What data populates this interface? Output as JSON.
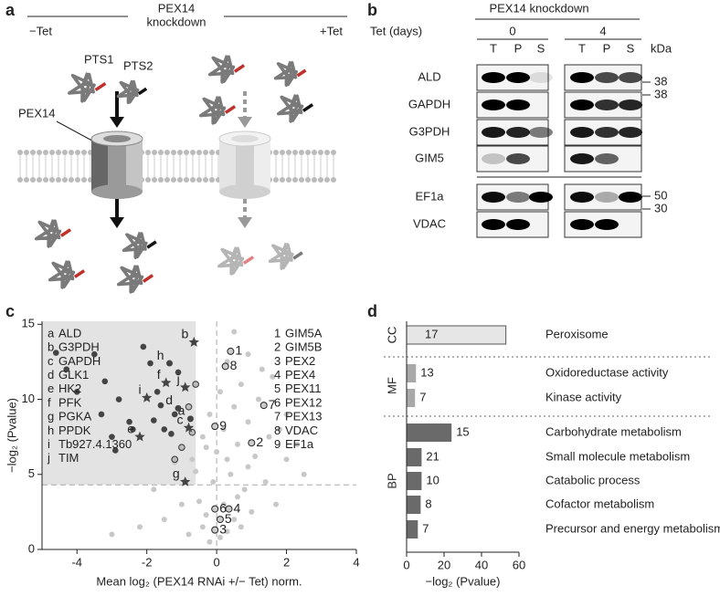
{
  "panel_labels": [
    "a",
    "b",
    "c",
    "d"
  ],
  "panel_a": {
    "header": [
      "PEX14",
      "knockdown"
    ],
    "minus_tet": "−Tet",
    "plus_tet": "+Tet",
    "pts1": "PTS1",
    "pts2": "PTS2",
    "pex14": "PEX14"
  },
  "panel_b": {
    "header": "PEX14 knockdown",
    "tet_label": "Tet (days)",
    "days": [
      "0",
      "4"
    ],
    "lanes": [
      "T",
      "P",
      "S"
    ],
    "unit": "kDa",
    "rows": [
      "ALD",
      "GAPDH",
      "G3PDH",
      "GIM5",
      "EF1a",
      "VDAC"
    ],
    "markers": [
      "38",
      "38",
      "50",
      "30"
    ]
  },
  "chart_data": [
    {
      "type": "scatter",
      "xlabel": "Mean log₂ (PEX14 RNAi +/− Tet) norm.",
      "ylabel": "−log₂ (Pvalue)",
      "xlim": [
        -5,
        4
      ],
      "ylim": [
        0,
        15.2
      ],
      "xticks": [
        -4,
        -2,
        0,
        2,
        4
      ],
      "yticks": [
        0,
        5,
        10,
        15
      ],
      "cutoff_x": 0,
      "cutoff_y": 4.3,
      "shade_xmax": -0.6,
      "background": {
        "color": "#c8c8c8",
        "x": [
          -0.2,
          0.1,
          0.3,
          -0.4,
          0.5,
          -0.3,
          0.2,
          0.6,
          -0.5,
          0.8,
          -0.1,
          0.4,
          0.9,
          -0.6,
          0.3,
          1.1,
          0.6,
          -0.3,
          1.5,
          0.2,
          0.9,
          1.8,
          -0.2,
          0.5,
          1.2,
          0.7,
          1.6,
          0.3,
          0.9,
          0.5,
          2.0,
          2.3,
          1.4,
          -1.0,
          -1.5,
          -2.2,
          -3.0,
          -1.8,
          1.0,
          1.7,
          2.5,
          -0.8,
          0.0,
          -0.4,
          0.1,
          1.3,
          2.0,
          -1.2,
          0.7,
          -0.7
        ],
        "y": [
          0.5,
          0.8,
          1.2,
          1.5,
          2,
          2.3,
          3,
          3.5,
          3.2,
          4,
          4.5,
          5,
          5.5,
          5.2,
          6,
          6.2,
          7,
          6.8,
          7.5,
          8,
          8.5,
          8,
          9,
          9.5,
          10,
          11,
          11.5,
          12.5,
          13,
          14.5,
          6,
          7,
          4.5,
          3,
          2,
          1.5,
          1,
          4,
          2.5,
          3,
          5,
          1,
          6.5,
          7.5,
          10.5,
          12,
          9,
          5.8,
          1.5,
          6
        ]
      },
      "dark": {
        "color": "#444444",
        "x": [
          -4.3,
          -3.5,
          -4.0,
          -3.2,
          -2.8,
          -3.3,
          -2.5,
          -3.0,
          -2.4,
          -1.8,
          -1.6,
          -1.2,
          -1.5,
          -1.9,
          -2.1,
          -1.1,
          -1.3,
          -4.6,
          -2.9,
          -1.7
        ],
        "y": [
          12,
          13,
          10.5,
          11.2,
          10,
          9,
          8.5,
          7.5,
          8,
          8.6,
          9.6,
          9,
          8,
          12.4,
          13.5,
          11.8,
          7.7,
          13.1,
          6.6,
          10.5
        ]
      },
      "outlined": {
        "x": [
          -0.8,
          -0.7,
          -1.0,
          -0.6,
          -1.2
        ],
        "y": [
          9.5,
          7.8,
          6.8,
          11,
          6
        ]
      },
      "highlighted": [
        {
          "key": "a",
          "name": "ALD",
          "x": -0.75,
          "y": 8.7,
          "marker": "circle",
          "group": "letter"
        },
        {
          "key": "b",
          "name": "G3PDH",
          "x": -0.65,
          "y": 13.8,
          "marker": "star",
          "group": "letter"
        },
        {
          "key": "c",
          "name": "GAPDH",
          "x": -0.8,
          "y": 8.1,
          "marker": "star",
          "group": "letter"
        },
        {
          "key": "d",
          "name": "GLK1",
          "x": -1.1,
          "y": 9.4,
          "marker": "circle",
          "group": "letter"
        },
        {
          "key": "e",
          "name": "HK2",
          "x": -2.2,
          "y": 7.5,
          "marker": "star",
          "group": "letter"
        },
        {
          "key": "f",
          "name": "PFK",
          "x": -1.45,
          "y": 11.1,
          "marker": "star",
          "group": "letter"
        },
        {
          "key": "g",
          "name": "PGKA",
          "x": -0.9,
          "y": 4.5,
          "marker": "star",
          "group": "letter"
        },
        {
          "key": "h",
          "name": "PPDK",
          "x": -1.35,
          "y": 12.4,
          "marker": "circle",
          "group": "letter"
        },
        {
          "key": "i",
          "name": "Tb927.4.1360",
          "x": -2.0,
          "y": 10.1,
          "marker": "star",
          "group": "letter"
        },
        {
          "key": "j",
          "name": "TIM",
          "x": -0.9,
          "y": 10.8,
          "marker": "star",
          "group": "letter"
        },
        {
          "key": "1",
          "name": "GIM5A",
          "x": 0.4,
          "y": 13.2,
          "marker": "ring",
          "group": "number"
        },
        {
          "key": "2",
          "name": "GIM5B",
          "x": 1.0,
          "y": 7.1,
          "marker": "ring",
          "group": "number"
        },
        {
          "key": "3",
          "name": "PEX2",
          "x": -0.05,
          "y": 1.3,
          "marker": "ring",
          "group": "number"
        },
        {
          "key": "4",
          "name": "PEX4",
          "x": 0.35,
          "y": 2.7,
          "marker": "ring",
          "group": "number"
        },
        {
          "key": "5",
          "name": "PEX11",
          "x": 0.1,
          "y": 2.0,
          "marker": "ring",
          "group": "number"
        },
        {
          "key": "6",
          "name": "PEX12",
          "x": -0.05,
          "y": 2.7,
          "marker": "ring",
          "group": "number"
        },
        {
          "key": "7",
          "name": "PEX13",
          "x": 1.35,
          "y": 9.6,
          "marker": "ring",
          "group": "number"
        },
        {
          "key": "8",
          "name": "VDAC",
          "x": 0.25,
          "y": 12.2,
          "marker": "ring",
          "group": "number"
        },
        {
          "key": "9",
          "name": "EF1a",
          "x": -0.05,
          "y": 8.2,
          "marker": "ring",
          "group": "number"
        }
      ],
      "letter_color": "#b02a2a",
      "number_color": "#3a78b8"
    },
    {
      "type": "bar",
      "orientation": "horizontal",
      "xlabel": "−log₂ (Pvalue)",
      "xlim": [
        0,
        60
      ],
      "xticks": [
        0,
        20,
        40,
        60
      ],
      "categories": [
        "Peroxisome",
        "Oxidoreductase activity",
        "Kinase activity",
        "Carbohydrate metabolism",
        "Small molecule metabolism",
        "Catabolic process",
        "Cofactor metabolism",
        "Precursor and energy metabolism"
      ],
      "values": [
        53,
        5,
        4.5,
        24,
        8,
        8,
        7.5,
        6
      ],
      "counts": [
        17,
        13,
        7,
        15,
        21,
        10,
        8,
        7
      ],
      "groups": [
        {
          "name": "CC",
          "start": 0,
          "end": 0,
          "color": "#e6e6e6"
        },
        {
          "name": "MF",
          "start": 1,
          "end": 2,
          "color": "#a8a8a8"
        },
        {
          "name": "BP",
          "start": 3,
          "end": 7,
          "color": "#6a6a6a"
        }
      ]
    }
  ]
}
